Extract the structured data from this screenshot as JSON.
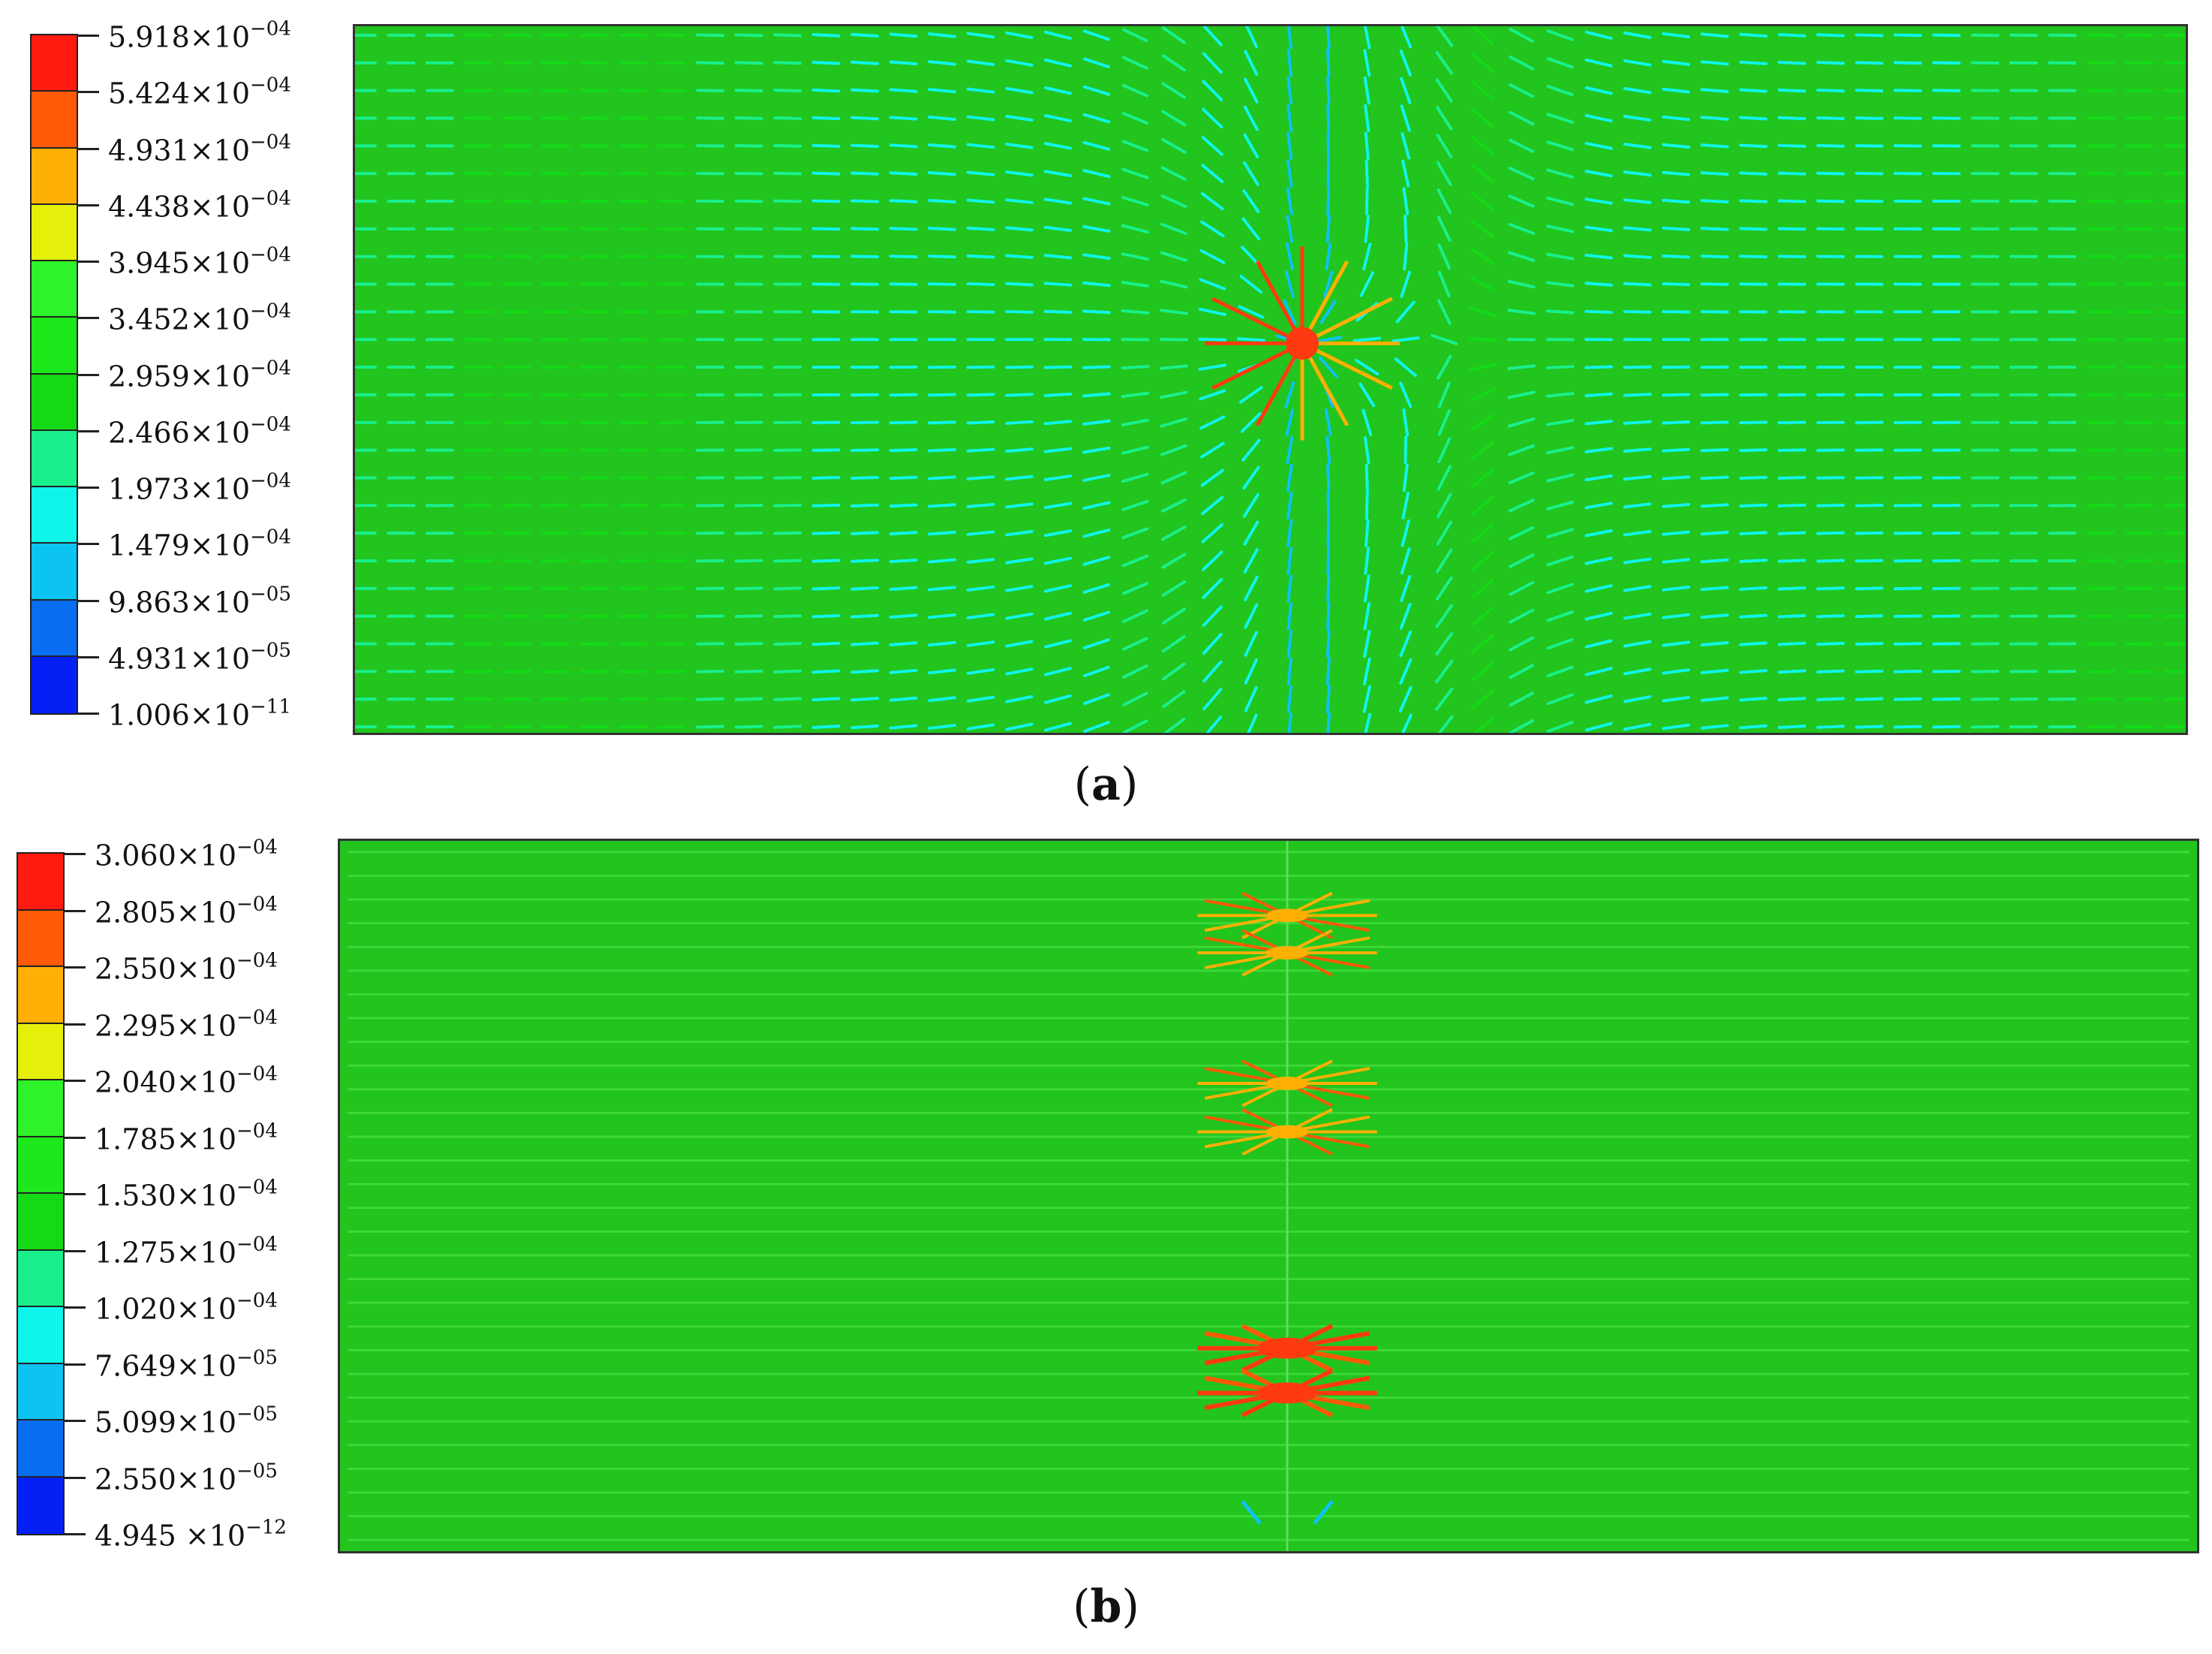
{
  "panels": [
    {
      "id": "a",
      "caption_open": "(",
      "caption_letter": "a",
      "caption_close": ")",
      "background_color": "#22c41e",
      "legend": [
        {
          "mantissa": "5.918",
          "times": "×10",
          "exp": "−04",
          "color": "#ff1a10"
        },
        {
          "mantissa": "5.424",
          "times": "×10",
          "exp": "−04",
          "color": "#ff5a08"
        },
        {
          "mantissa": "4.931",
          "times": "×10",
          "exp": "−04",
          "color": "#ffb005"
        },
        {
          "mantissa": "4.438",
          "times": "×10",
          "exp": "−04",
          "color": "#e4f00a"
        },
        {
          "mantissa": "3.945",
          "times": "×10",
          "exp": "−04",
          "color": "#2ef22a"
        },
        {
          "mantissa": "3.452",
          "times": "×10",
          "exp": "−04",
          "color": "#1de81b"
        },
        {
          "mantissa": "2.959",
          "times": "×10",
          "exp": "−04",
          "color": "#14da16"
        },
        {
          "mantissa": "2.466",
          "times": "×10",
          "exp": "−04",
          "color": "#19f08c"
        },
        {
          "mantissa": "1.973",
          "times": "×10",
          "exp": "−04",
          "color": "#0ff5ea"
        },
        {
          "mantissa": "1.479",
          "times": "×10",
          "exp": "−04",
          "color": "#0cc3f2"
        },
        {
          "mantissa": "9.863",
          "times": "×10",
          "exp": "−05",
          "color": "#0a6ef2"
        },
        {
          "mantissa": "4.931",
          "times": "×10",
          "exp": "−05",
          "color": "#0520f5"
        }
      ],
      "legend_bottom": {
        "mantissa": "1.006",
        "times": "×10",
        "exp": "−11"
      }
    },
    {
      "id": "b",
      "caption_open": "(",
      "caption_letter": "b",
      "caption_close": ")",
      "background_color": "#22c41e",
      "legend": [
        {
          "mantissa": "3.060",
          "times": "×10",
          "exp": "−04",
          "color": "#ff1a10"
        },
        {
          "mantissa": "2.805",
          "times": "×10",
          "exp": "−04",
          "color": "#ff5a08"
        },
        {
          "mantissa": "2.550",
          "times": "×10",
          "exp": "−04",
          "color": "#ffb005"
        },
        {
          "mantissa": "2.295",
          "times": "×10",
          "exp": "−04",
          "color": "#e4f00a"
        },
        {
          "mantissa": "2.040",
          "times": "×10",
          "exp": "−04",
          "color": "#2ef22a"
        },
        {
          "mantissa": "1.785",
          "times": "×10",
          "exp": "−04",
          "color": "#1de81b"
        },
        {
          "mantissa": "1.530",
          "times": "×10",
          "exp": "−04",
          "color": "#14da16"
        },
        {
          "mantissa": "1.275",
          "times": "×10",
          "exp": "−04",
          "color": "#19f08c"
        },
        {
          "mantissa": "1.020",
          "times": "×10",
          "exp": "−04",
          "color": "#0ff5ea"
        },
        {
          "mantissa": "7.649",
          "times": "×10",
          "exp": "−05",
          "color": "#0cc3f2"
        },
        {
          "mantissa": "5.099",
          "times": "×10",
          "exp": "−05",
          "color": "#0a6ef2"
        },
        {
          "mantissa": "2.550",
          "times": "×10",
          "exp": "−05",
          "color": "#0520f5"
        }
      ],
      "legend_bottom": {
        "mantissa": "4.945 ",
        "times": "×10",
        "exp": "−12"
      }
    }
  ]
}
